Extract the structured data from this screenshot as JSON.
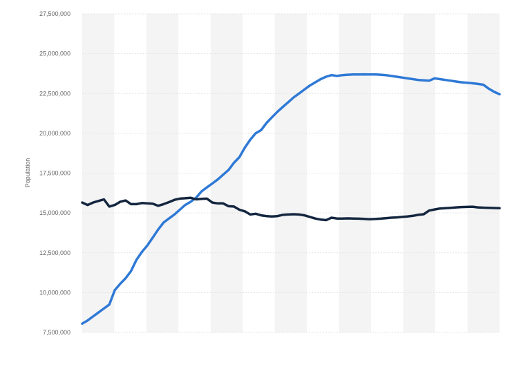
{
  "chart_data": {
    "type": "line",
    "title": "",
    "xlabel": "",
    "ylabel": "Population",
    "ylim": [
      7500000,
      27500000
    ],
    "yticks": [
      7500000,
      10000000,
      12500000,
      15000000,
      17500000,
      20000000,
      22500000,
      25000000,
      27500000
    ],
    "ytick_labels": [
      "7,500,000",
      "10,000,000",
      "12,500,000",
      "15,000,000",
      "17,500,000",
      "20,000,000",
      "22,500,000",
      "25,000,000",
      "27,500,000"
    ],
    "x": [
      0,
      1,
      2,
      3,
      4,
      5,
      6,
      7,
      8,
      9,
      10,
      11,
      12,
      13,
      14,
      15,
      16,
      17,
      18,
      19,
      20,
      21,
      22,
      23,
      24,
      25,
      26,
      27,
      28,
      29,
      30,
      31,
      32,
      33,
      34,
      35,
      36,
      37,
      38,
      39,
      40,
      41,
      42,
      43,
      44,
      45,
      46,
      47,
      48,
      49,
      50,
      51,
      52,
      53,
      54,
      55,
      56,
      57,
      58,
      59,
      60,
      61,
      62,
      63,
      64,
      65,
      66,
      67,
      68,
      69,
      70,
      71,
      72,
      73,
      74,
      75,
      76,
      77
    ],
    "grid": true,
    "legend": "none",
    "series": [
      {
        "color": "#2f79d6",
        "values": [
          8050000,
          8250000,
          8500000,
          8750000,
          9000000,
          9250000,
          10150000,
          10550000,
          10900000,
          11350000,
          12050000,
          12550000,
          12950000,
          13450000,
          13950000,
          14400000,
          14650000,
          14900000,
          15200000,
          15500000,
          15700000,
          15950000,
          16350000,
          16600000,
          16850000,
          17100000,
          17400000,
          17700000,
          18150000,
          18500000,
          19100000,
          19600000,
          20000000,
          20200000,
          20650000,
          21000000,
          21350000,
          21650000,
          21950000,
          22250000,
          22500000,
          22750000,
          23000000,
          23200000,
          23400000,
          23550000,
          23650000,
          23600000,
          23650000,
          23680000,
          23690000,
          23695000,
          23700000,
          23695000,
          23700000,
          23680000,
          23650000,
          23600000,
          23550000,
          23500000,
          23450000,
          23400000,
          23350000,
          23320000,
          23300000,
          23450000,
          23400000,
          23350000,
          23300000,
          23250000,
          23200000,
          23170000,
          23140000,
          23100000,
          23050000,
          22800000,
          22600000,
          22450000
        ]
      },
      {
        "color": "#14263f",
        "values": [
          15650000,
          15500000,
          15650000,
          15750000,
          15850000,
          15400000,
          15500000,
          15700000,
          15780000,
          15550000,
          15550000,
          15620000,
          15600000,
          15580000,
          15450000,
          15550000,
          15680000,
          15820000,
          15900000,
          15920000,
          15950000,
          15850000,
          15880000,
          15900000,
          15650000,
          15600000,
          15600000,
          15420000,
          15400000,
          15200000,
          15100000,
          14900000,
          14950000,
          14850000,
          14800000,
          14780000,
          14800000,
          14880000,
          14900000,
          14920000,
          14900000,
          14850000,
          14750000,
          14650000,
          14580000,
          14550000,
          14700000,
          14650000,
          14650000,
          14660000,
          14650000,
          14640000,
          14630000,
          14600000,
          14620000,
          14640000,
          14670000,
          14700000,
          14720000,
          14750000,
          14780000,
          14820000,
          14880000,
          14920000,
          15150000,
          15220000,
          15280000,
          15300000,
          15320000,
          15350000,
          15370000,
          15380000,
          15390000,
          15350000,
          15330000,
          15320000,
          15310000,
          15300000
        ]
      }
    ]
  }
}
